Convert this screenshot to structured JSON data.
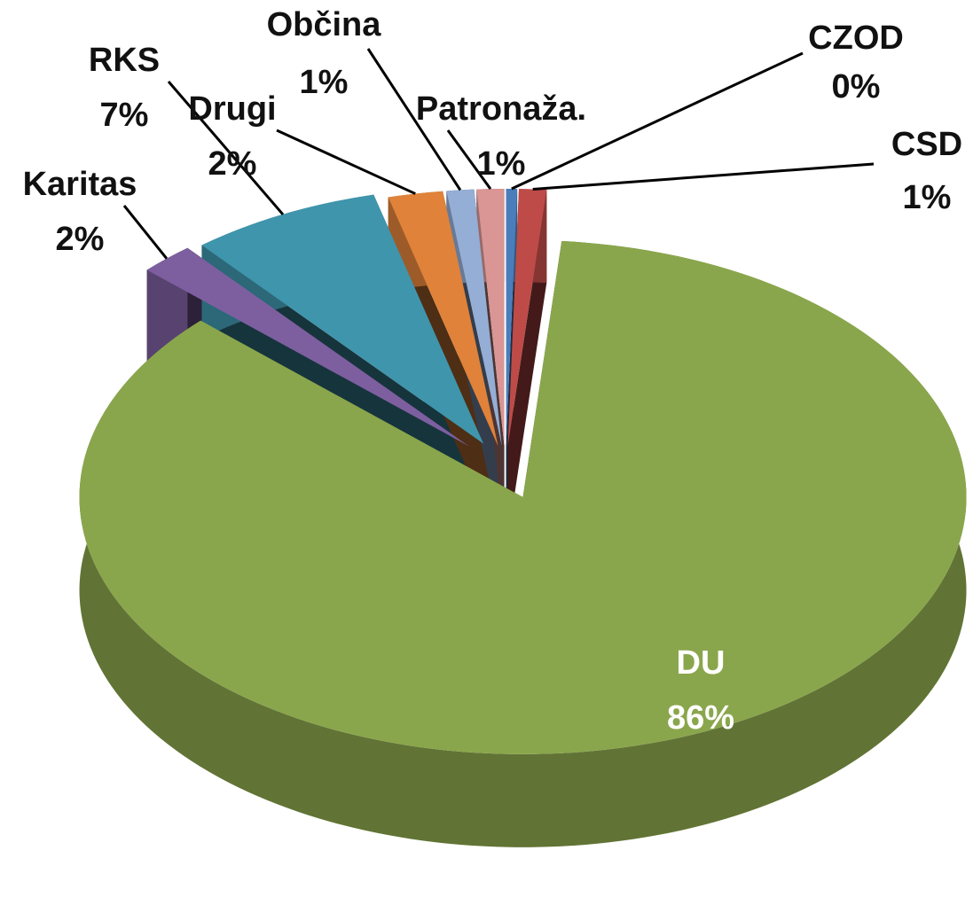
{
  "chart_data": {
    "type": "pie",
    "categories": [
      "CZOD",
      "CSD",
      "DU",
      "Karitas",
      "RKS",
      "Drugi",
      "Občina",
      "Patronaža."
    ],
    "values": [
      0.4,
      1,
      86,
      2,
      7,
      2,
      1,
      1
    ],
    "value_labels": [
      "0%",
      "1%",
      "86%",
      "2%",
      "7%",
      "2%",
      "1%",
      "1%"
    ],
    "colors": [
      "#4a7ebb",
      "#be4b48",
      "#8aa64c",
      "#7d5fa0",
      "#3f95ac",
      "#e0823a",
      "#94aed6",
      "#d99694"
    ]
  }
}
